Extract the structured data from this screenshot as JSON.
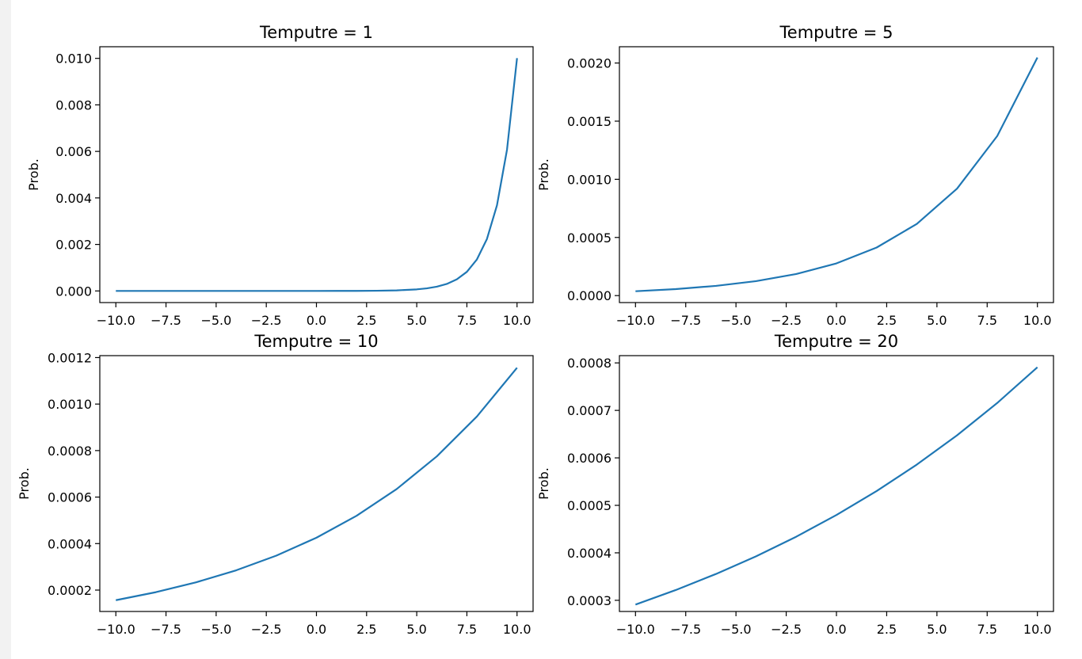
{
  "chart_data": [
    {
      "type": "line",
      "title": "Temputre = 1",
      "xlabel": "",
      "ylabel": "Prob.",
      "xlim": [
        -10.8,
        10.8
      ],
      "ylim": [
        -0.0005,
        0.0105
      ],
      "xticks": [
        -10.0,
        -7.5,
        -5.0,
        -2.5,
        0.0,
        2.5,
        5.0,
        7.5,
        10.0
      ],
      "xtick_labels": [
        "−10.0",
        "−7.5",
        "−5.0",
        "−2.5",
        "0.0",
        "2.5",
        "5.0",
        "7.5",
        "10.0"
      ],
      "yticks": [
        0.0,
        0.002,
        0.004,
        0.006,
        0.008,
        0.01
      ],
      "ytick_labels": [
        "0.000",
        "0.002",
        "0.004",
        "0.006",
        "0.008",
        "0.010"
      ],
      "series_color": "#1f77b4",
      "series": [
        {
          "x": [
            -10,
            -8,
            -6,
            -4,
            -2,
            0,
            1,
            2,
            3,
            4,
            5,
            5.5,
            6,
            6.5,
            7,
            7.5,
            8,
            8.5,
            9,
            9.5,
            10
          ],
          "values": [
            0.0,
            0.0,
            0.0,
            0.0,
            0.0,
            5e-07,
            1.2e-06,
            3.4e-06,
            9.1e-06,
            2.48e-05,
            6.75e-05,
            0.0001112,
            0.0001834,
            0.0003023,
            0.0004984,
            0.0008218,
            0.0013548,
            0.0022337,
            0.0036829,
            0.0060721,
            0.0100112
          ]
        }
      ]
    },
    {
      "type": "line",
      "title": "Temputre = 5",
      "xlabel": "",
      "ylabel": "Prob.",
      "xlim": [
        -10.8,
        10.8
      ],
      "ylim": [
        -6e-05,
        0.00214
      ],
      "xticks": [
        -10.0,
        -7.5,
        -5.0,
        -2.5,
        0.0,
        2.5,
        5.0,
        7.5,
        10.0
      ],
      "xtick_labels": [
        "−10.0",
        "−7.5",
        "−5.0",
        "−2.5",
        "0.0",
        "2.5",
        "5.0",
        "7.5",
        "10.0"
      ],
      "yticks": [
        0.0,
        0.0005,
        0.001,
        0.0015,
        0.002
      ],
      "ytick_labels": [
        "0.0000",
        "0.0005",
        "0.0010",
        "0.0015",
        "0.0020"
      ],
      "series_color": "#1f77b4",
      "series": [
        {
          "x": [
            -10,
            -8,
            -6,
            -4,
            -2,
            0,
            2,
            4,
            6,
            8,
            10
          ],
          "values": [
            3.75e-05,
            5.6e-05,
            8.35e-05,
            0.0001245,
            0.0001857,
            0.000277,
            0.0004133,
            0.0006165,
            0.0009197,
            0.001372,
            0.002047
          ]
        }
      ]
    },
    {
      "type": "line",
      "title": "Temputre = 10",
      "xlabel": "",
      "ylabel": "Prob.",
      "xlim": [
        -10.8,
        10.8
      ],
      "ylim": [
        0.000108,
        0.0012083
      ],
      "xticks": [
        -10.0,
        -7.5,
        -5.0,
        -2.5,
        0.0,
        2.5,
        5.0,
        7.5,
        10.0
      ],
      "xtick_labels": [
        "−10.0",
        "−7.5",
        "−5.0",
        "−2.5",
        "0.0",
        "2.5",
        "5.0",
        "7.5",
        "10.0"
      ],
      "yticks": [
        0.0002,
        0.0004,
        0.0006,
        0.0008,
        0.001,
        0.0012
      ],
      "ytick_labels": [
        "0.0002",
        "0.0004",
        "0.0006",
        "0.0008",
        "0.0010",
        "0.0012"
      ],
      "series_color": "#1f77b4",
      "series": [
        {
          "x": [
            -10,
            -8,
            -6,
            -4,
            -2,
            0,
            2,
            4,
            6,
            8,
            10
          ],
          "values": [
            0.0001565,
            0.0001911,
            0.0002334,
            0.0002851,
            0.0003482,
            0.0004253,
            0.0005195,
            0.0006345,
            0.000775,
            0.0009466,
            0.0011562
          ]
        }
      ]
    },
    {
      "type": "line",
      "title": "Temputre = 20",
      "xlabel": "",
      "ylabel": "Prob.",
      "xlim": [
        -10.8,
        10.8
      ],
      "ylim": [
        0.0002765,
        0.0008153
      ],
      "xticks": [
        -10.0,
        -7.5,
        -5.0,
        -2.5,
        0.0,
        2.5,
        5.0,
        7.5,
        10.0
      ],
      "xtick_labels": [
        "−10.0",
        "−7.5",
        "−5.0",
        "−2.5",
        "0.0",
        "2.5",
        "5.0",
        "7.5",
        "10.0"
      ],
      "yticks": [
        0.0003,
        0.0004,
        0.0005,
        0.0006,
        0.0007,
        0.0008
      ],
      "ytick_labels": [
        "0.0003",
        "0.0004",
        "0.0005",
        "0.0006",
        "0.0007",
        "0.0008"
      ],
      "series_color": "#1f77b4",
      "series": [
        {
          "x": [
            -10,
            -8,
            -6,
            -4,
            -2,
            0,
            2,
            4,
            6,
            8,
            10
          ],
          "values": [
            0.000291,
            0.0003216,
            0.0003554,
            0.0003927,
            0.000434,
            0.0004797,
            0.0005301,
            0.0005859,
            0.0006475,
            0.0007156,
            0.0007908
          ]
        }
      ]
    }
  ]
}
